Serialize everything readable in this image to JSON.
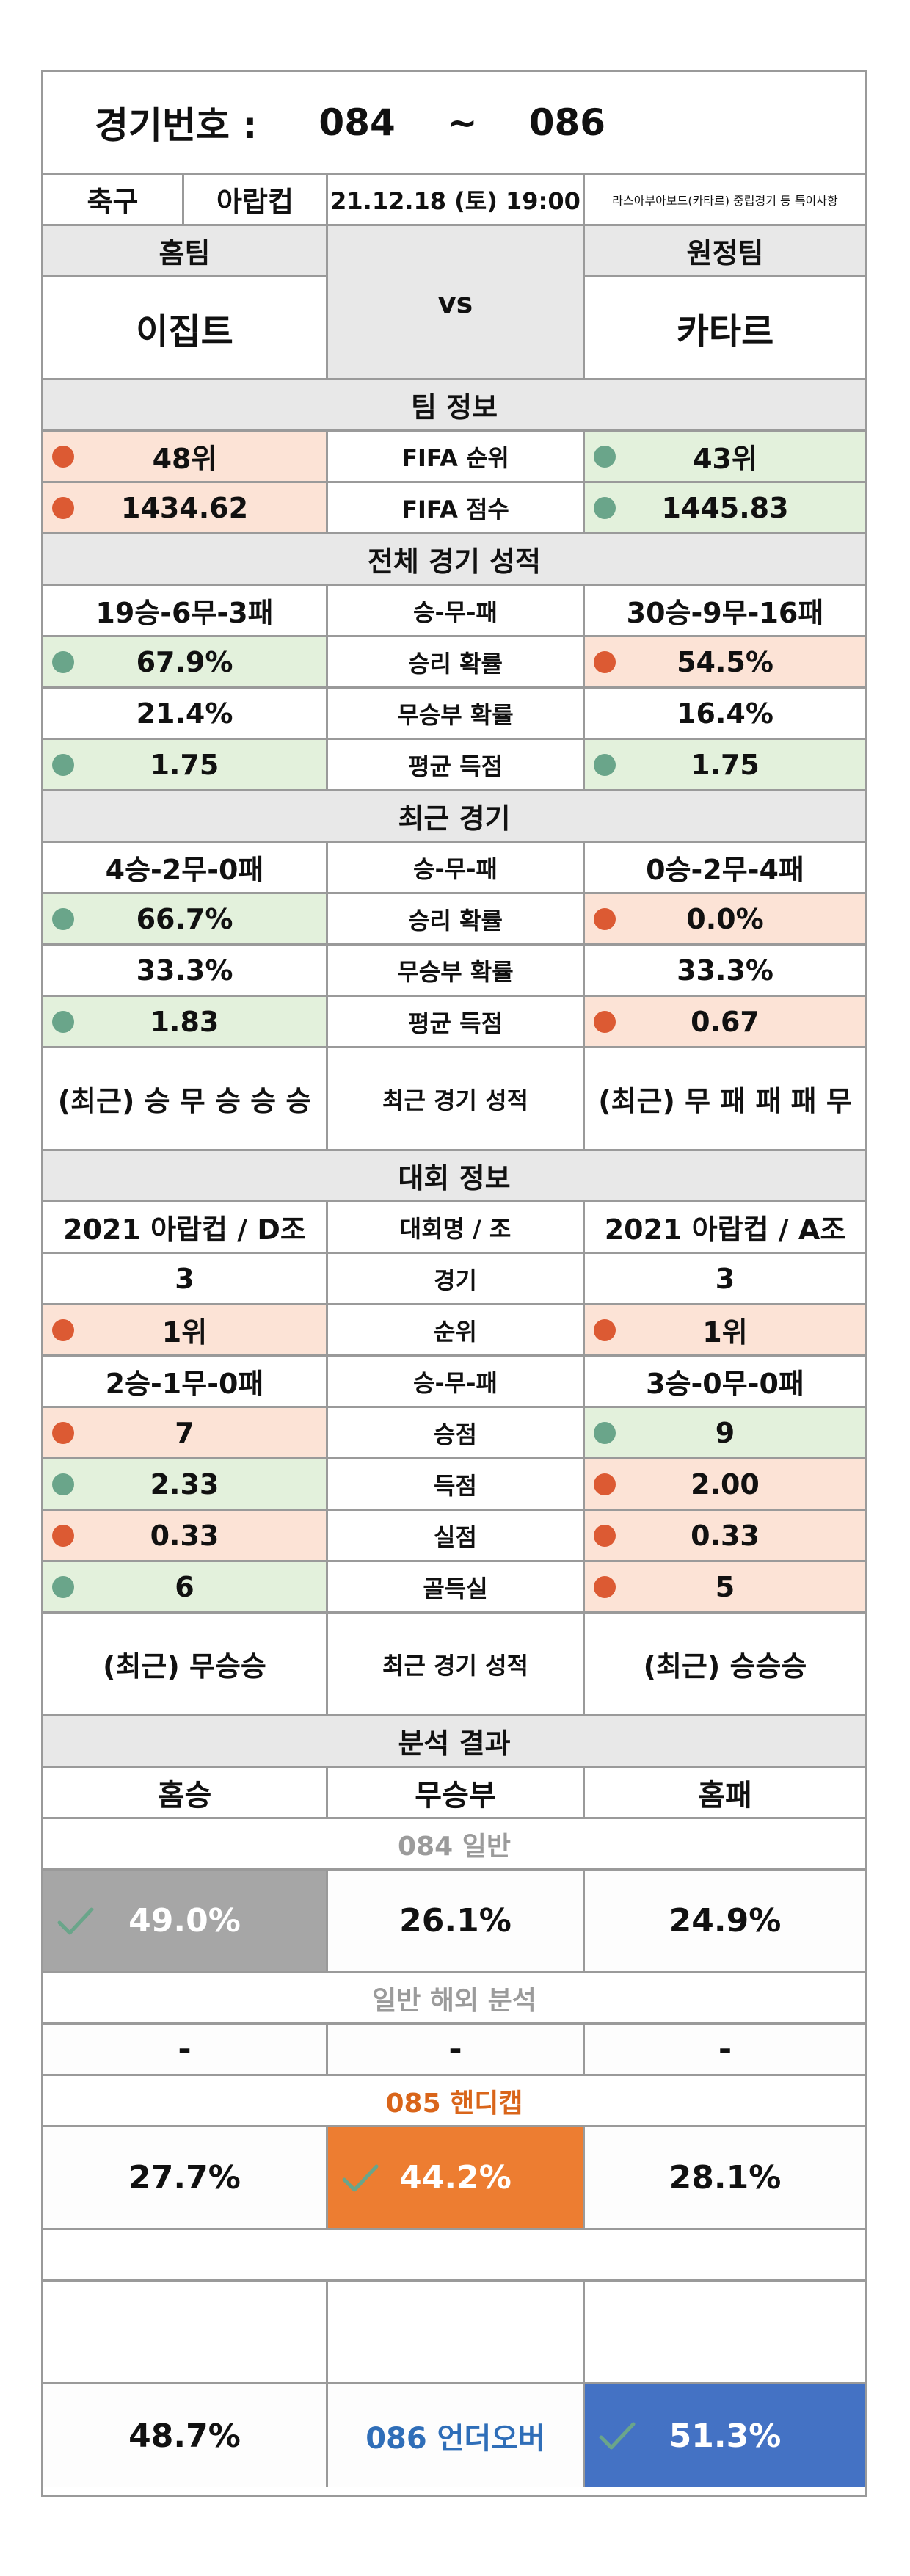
{
  "header": {
    "label": "경기번호 :",
    "from": "084",
    "tilde": "~",
    "to": "086"
  },
  "meta": {
    "sport": "축구",
    "league": "아랍컵",
    "datetime": "21.12.18 (토) 19:00",
    "note": "라스아부아보드(카타르) 중립경기 등 특이사항"
  },
  "teams": {
    "home_label": "홈팀",
    "away_label": "원정팀",
    "vs": "vs",
    "home": "이집트",
    "away": "카타르"
  },
  "team_info": {
    "title": "팀 정보",
    "rows": [
      {
        "home": "48위",
        "label": "FIFA 순위",
        "away": "43위",
        "home_color": "red",
        "away_color": "green"
      },
      {
        "home": "1434.62",
        "label": "FIFA 점수",
        "away": "1445.83",
        "home_color": "red",
        "away_color": "green"
      }
    ]
  },
  "overall": {
    "title": "전체 경기 성적",
    "rows": [
      {
        "home": "19승-6무-3패",
        "label": "승-무-패",
        "away": "30승-9무-16패",
        "home_color": "",
        "away_color": ""
      },
      {
        "home": "67.9%",
        "label": "승리 확률",
        "away": "54.5%",
        "home_color": "green",
        "away_color": "red"
      },
      {
        "home": "21.4%",
        "label": "무승부 확률",
        "away": "16.4%",
        "home_color": "",
        "away_color": ""
      },
      {
        "home": "1.75",
        "label": "평균 득점",
        "away": "1.75",
        "home_color": "green",
        "away_color": "green"
      }
    ]
  },
  "recent": {
    "title": "최근 경기",
    "rows": [
      {
        "home": "4승-2무-0패",
        "label": "승-무-패",
        "away": "0승-2무-4패",
        "home_color": "",
        "away_color": ""
      },
      {
        "home": "66.7%",
        "label": "승리 확률",
        "away": "0.0%",
        "home_color": "green",
        "away_color": "red"
      },
      {
        "home": "33.3%",
        "label": "무승부 확률",
        "away": "33.3%",
        "home_color": "",
        "away_color": ""
      },
      {
        "home": "1.83",
        "label": "평균 득점",
        "away": "0.67",
        "home_color": "green",
        "away_color": "red"
      }
    ],
    "form": {
      "home": "(최근) 승 무 승 승 승",
      "label": "최근 경기 성적",
      "away": "(최근) 무 패 패 패 무"
    }
  },
  "tournament": {
    "title": "대회 정보",
    "rows": [
      {
        "home": "2021 아랍컵 / D조",
        "label": "대회명 / 조",
        "away": "2021 아랍컵 / A조",
        "home_color": "",
        "away_color": ""
      },
      {
        "home": "3",
        "label": "경기",
        "away": "3",
        "home_color": "",
        "away_color": ""
      },
      {
        "home": "1위",
        "label": "순위",
        "away": "1위",
        "home_color": "red",
        "away_color": "red"
      },
      {
        "home": "2승-1무-0패",
        "label": "승-무-패",
        "away": "3승-0무-0패",
        "home_color": "",
        "away_color": ""
      },
      {
        "home": "7",
        "label": "승점",
        "away": "9",
        "home_color": "red",
        "away_color": "green"
      },
      {
        "home": "2.33",
        "label": "득점",
        "away": "2.00",
        "home_color": "green",
        "away_color": "red"
      },
      {
        "home": "0.33",
        "label": "실점",
        "away": "0.33",
        "home_color": "red",
        "away_color": "red"
      },
      {
        "home": "6",
        "label": "골득실",
        "away": "5",
        "home_color": "green",
        "away_color": "red"
      }
    ],
    "form": {
      "home": "(최근) 무승승",
      "label": "최근 경기 성적",
      "away": "(최근) 승승승"
    }
  },
  "analysis": {
    "title": "분석 결과",
    "cols": [
      "홈승",
      "무승부",
      "홈패"
    ],
    "general": {
      "label": "084 일반",
      "home": "49.0%",
      "draw": "26.1%",
      "away": "24.9%"
    },
    "overseas": {
      "label": "일반 해외 분석",
      "home": "-",
      "draw": "-",
      "away": "-"
    },
    "handicap": {
      "label": "085 핸디캡",
      "home": "27.7%",
      "draw": "44.2%",
      "away": "28.1%"
    },
    "underover": {
      "under": "48.7%",
      "label": "086 언더오버",
      "over": "51.3%"
    }
  },
  "colors": {
    "border": "#9a9a9a",
    "gray": "#e8e8e8",
    "red": "#fce3d6",
    "green": "#e3f1dc",
    "dot_red": "#dc5a33",
    "dot_green": "#6aa58a",
    "pick_gray": "#a6a6a6",
    "pick_orange": "#ed7d31",
    "pick_blue": "#4472c4"
  }
}
